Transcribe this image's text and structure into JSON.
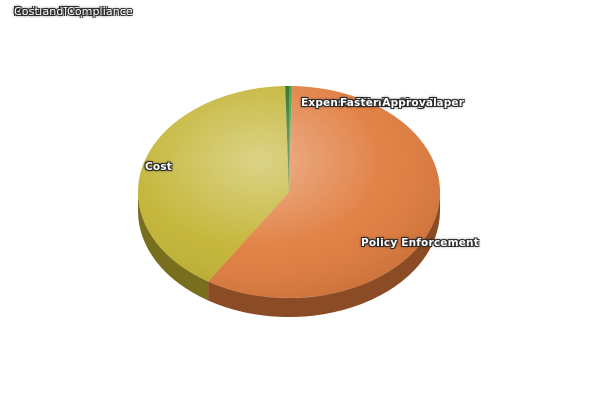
{
  "chart_data": {
    "type": "pie",
    "titles": [
      "Reduce IT Spend",
      "Cost and Compliance"
    ],
    "slices": [
      {
        "label": "Expense Eliminating Paper",
        "value": 0.3,
        "color": "#3a9a3a"
      },
      {
        "label": "Policy Enforcement",
        "value": 58.7,
        "color": "#e07b3c"
      },
      {
        "label": "Cost",
        "value": 40.6,
        "color": "#c2b331"
      },
      {
        "label": "Faster Approval",
        "value": 0.4,
        "color": "#1e6a1e"
      }
    ]
  }
}
